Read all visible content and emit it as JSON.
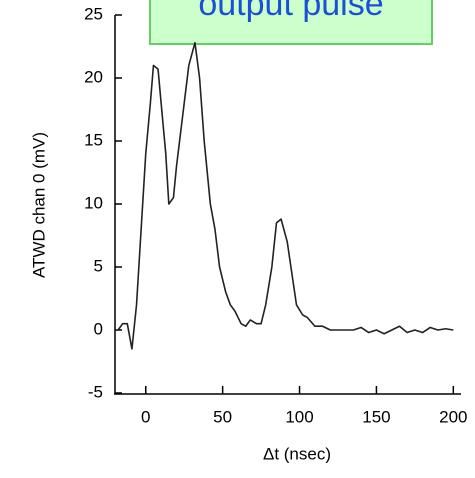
{
  "chart_data": {
    "type": "line",
    "title": "output pulse",
    "xlabel": "Δt (nsec)",
    "ylabel": "ATWD chan 0 (mV)",
    "x": [
      -18,
      -15,
      -12,
      -9,
      -6,
      -3,
      0,
      3,
      5,
      8,
      10,
      13,
      15,
      18,
      20,
      23,
      25,
      28,
      32,
      35,
      38,
      42,
      45,
      48,
      52,
      55,
      58,
      62,
      65,
      68,
      72,
      75,
      78,
      82,
      85,
      88,
      92,
      95,
      98,
      102,
      105,
      110,
      115,
      120,
      125,
      130,
      135,
      140,
      145,
      150,
      155,
      160,
      165,
      170,
      175,
      180,
      185,
      190,
      195,
      200
    ],
    "series": [
      {
        "name": "ATWD chan 0",
        "color": "#222222",
        "values": [
          0,
          0.5,
          0.5,
          -1.5,
          2,
          8,
          14,
          18,
          21,
          20.7,
          18,
          14,
          10,
          10.5,
          13,
          16,
          18,
          21,
          22.8,
          20,
          15,
          10,
          8,
          5,
          3,
          2,
          1.5,
          0.5,
          0.3,
          0.8,
          0.5,
          0.5,
          2,
          5,
          8.5,
          8.8,
          7,
          4.5,
          2,
          1.2,
          1,
          0.3,
          0.3,
          0,
          0,
          0,
          0,
          0.2,
          -0.2,
          0,
          -0.3,
          0,
          0.3,
          -0.2,
          0,
          -0.2,
          0.2,
          0,
          0.1,
          0
        ]
      }
    ],
    "xlim": [
      -20,
      205
    ],
    "ylim": [
      -5,
      25
    ],
    "xticks": [
      0,
      50,
      100,
      150,
      200
    ],
    "yticks": [
      -5,
      0,
      5,
      10,
      15,
      20,
      25
    ]
  }
}
